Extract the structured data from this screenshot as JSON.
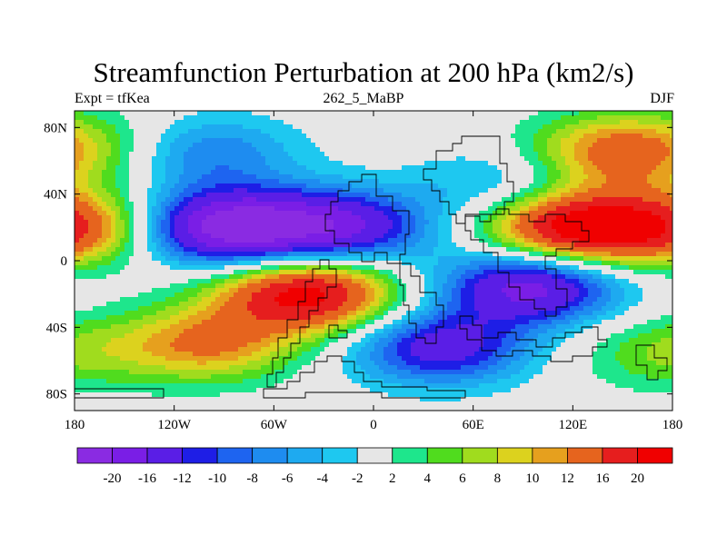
{
  "chart_data": {
    "type": "heatmap",
    "title": "Streamfunction Perturbation at 200 hPa (km2/s)",
    "left_string": "Expt = tfKea",
    "center_string": "262_5_MaBP",
    "right_string": "DJF",
    "x_ticks": [
      "180",
      "120W",
      "60W",
      "0",
      "60E",
      "120E",
      "180"
    ],
    "x_tick_values": [
      -180,
      -120,
      -60,
      0,
      60,
      120,
      180
    ],
    "y_ticks": [
      "80N",
      "40N",
      "0",
      "40S",
      "80S"
    ],
    "y_tick_values": [
      80,
      40,
      0,
      -40,
      -80
    ],
    "xlim": [
      -180,
      180
    ],
    "ylim": [
      -90,
      90
    ],
    "levels": [
      "-20",
      "-16",
      "-12",
      "-10",
      "-8",
      "-6",
      "-4",
      "-2",
      "2",
      "4",
      "6",
      "8",
      "10",
      "12",
      "16",
      "20"
    ],
    "level_values": [
      -20,
      -16,
      -12,
      -10,
      -8,
      -6,
      -4,
      -2,
      2,
      4,
      6,
      8,
      10,
      12,
      16,
      20
    ],
    "colors": [
      "#8a2be2",
      "#7a1ee6",
      "#5a1ee6",
      "#1e1ee6",
      "#1e64f0",
      "#1e8cf0",
      "#1eaaf0",
      "#1ec8f0",
      "#e6e6e6",
      "#1ee68c",
      "#50dc1e",
      "#a0dc1e",
      "#dcd21e",
      "#e6a01e",
      "#e6641e",
      "#e61e1e",
      "#f00000"
    ],
    "centers": [
      {
        "lon": -90,
        "lat": 20,
        "value": -22
      },
      {
        "lon": -20,
        "lat": 20,
        "value": -16
      },
      {
        "lon": 95,
        "lat": -15,
        "value": -18
      },
      {
        "lon": 40,
        "lat": -52,
        "value": -14
      },
      {
        "lon": -100,
        "lat": 65,
        "value": -8
      },
      {
        "lon": 80,
        "lat": 45,
        "value": -6
      },
      {
        "lon": 120,
        "lat": 20,
        "value": 22
      },
      {
        "lon": -40,
        "lat": -20,
        "value": 22
      },
      {
        "lon": -100,
        "lat": -50,
        "value": 12
      },
      {
        "lon": 145,
        "lat": 65,
        "value": 13
      },
      {
        "lon": -178,
        "lat": 20,
        "value": 14
      },
      {
        "lon": 175,
        "lat": -55,
        "value": 6
      },
      {
        "lon": -165,
        "lat": 70,
        "value": 4
      },
      {
        "lon": 20,
        "lat": -70,
        "value": 0
      }
    ]
  }
}
